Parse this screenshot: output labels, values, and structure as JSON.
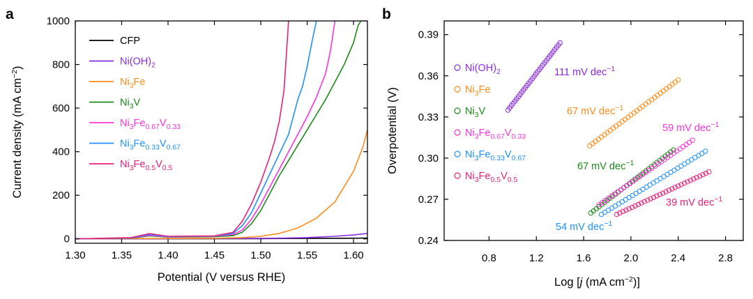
{
  "chart_data": [
    {
      "panel": "a",
      "type": "line",
      "xlabel": "Potential (V versus RHE)",
      "ylabel": "Current density (mA cm−2)",
      "xlim": [
        1.3,
        1.615
      ],
      "ylim": [
        -20,
        1000
      ],
      "xticks": [
        1.3,
        1.35,
        1.4,
        1.45,
        1.5,
        1.55,
        1.6
      ],
      "xtick_labels": [
        "1.30",
        "1.35",
        "1.40",
        "1.45",
        "1.50",
        "1.55",
        "1.60"
      ],
      "yticks": [
        0,
        200,
        400,
        600,
        800,
        1000
      ],
      "ytick_labels": [
        "0",
        "200",
        "400",
        "600",
        "800",
        "1000"
      ],
      "legend_position": "top-left",
      "series": [
        {
          "name": "CFP",
          "base": "CFP",
          "sub": "",
          "base2": "",
          "sub2": "",
          "base3": "",
          "sub3": "",
          "color": "#000000",
          "points": [
            [
              1.3,
              0
            ],
            [
              1.4,
              0.5
            ],
            [
              1.5,
              1
            ],
            [
              1.55,
              2
            ],
            [
              1.6,
              3
            ],
            [
              1.615,
              4
            ]
          ]
        },
        {
          "name": "Ni(OH)2",
          "base": "Ni(OH)",
          "sub": "2",
          "base2": "",
          "sub2": "",
          "base3": "",
          "sub3": "",
          "color": "#8a2be2",
          "points": [
            [
              1.3,
              0
            ],
            [
              1.4,
              1
            ],
            [
              1.48,
              2
            ],
            [
              1.52,
              3
            ],
            [
              1.55,
              6
            ],
            [
              1.58,
              12
            ],
            [
              1.6,
              18
            ],
            [
              1.615,
              25
            ]
          ]
        },
        {
          "name": "Ni3Fe",
          "base": "Ni",
          "sub": "3",
          "base2": "Fe",
          "sub2": "",
          "base3": "",
          "sub3": "",
          "color": "#ff8c1a",
          "points": [
            [
              1.3,
              0
            ],
            [
              1.4,
              2
            ],
            [
              1.45,
              3
            ],
            [
              1.48,
              6
            ],
            [
              1.5,
              12
            ],
            [
              1.52,
              25
            ],
            [
              1.54,
              50
            ],
            [
              1.56,
              95
            ],
            [
              1.58,
              170
            ],
            [
              1.6,
              310
            ],
            [
              1.61,
              420
            ],
            [
              1.615,
              500
            ]
          ]
        },
        {
          "name": "Ni3V",
          "base": "Ni",
          "sub": "3",
          "base2": "V",
          "sub2": "",
          "base3": "",
          "sub3": "",
          "color": "#1a8a1a",
          "points": [
            [
              1.3,
              0
            ],
            [
              1.36,
              3
            ],
            [
              1.38,
              14
            ],
            [
              1.4,
              8
            ],
            [
              1.45,
              10
            ],
            [
              1.47,
              15
            ],
            [
              1.48,
              30
            ],
            [
              1.49,
              70
            ],
            [
              1.5,
              130
            ],
            [
              1.51,
              210
            ],
            [
              1.52,
              290
            ],
            [
              1.53,
              360
            ],
            [
              1.54,
              430
            ],
            [
              1.55,
              500
            ],
            [
              1.56,
              570
            ],
            [
              1.57,
              640
            ],
            [
              1.58,
              720
            ],
            [
              1.59,
              800
            ],
            [
              1.6,
              900
            ],
            [
              1.605,
              980
            ],
            [
              1.608,
              1000
            ]
          ]
        },
        {
          "name": "Ni3Fe0.67V0.33",
          "base": "Ni",
          "sub": "3",
          "base2": "Fe",
          "sub2": "0.67",
          "base3": "V",
          "sub3": "0.33",
          "color": "#ff33dd",
          "points": [
            [
              1.3,
              0
            ],
            [
              1.36,
              4
            ],
            [
              1.38,
              16
            ],
            [
              1.4,
              9
            ],
            [
              1.45,
              12
            ],
            [
              1.47,
              20
            ],
            [
              1.48,
              40
            ],
            [
              1.49,
              90
            ],
            [
              1.5,
              160
            ],
            [
              1.51,
              240
            ],
            [
              1.52,
              320
            ],
            [
              1.53,
              400
            ],
            [
              1.54,
              480
            ],
            [
              1.55,
              560
            ],
            [
              1.56,
              650
            ],
            [
              1.57,
              760
            ],
            [
              1.575,
              860
            ],
            [
              1.58,
              1000
            ]
          ]
        },
        {
          "name": "Ni3Fe0.33V0.67",
          "base": "Ni",
          "sub": "3",
          "base2": "Fe",
          "sub2": "0.33",
          "base3": "V",
          "sub3": "0.67",
          "color": "#1e90ff",
          "points": [
            [
              1.3,
              0
            ],
            [
              1.36,
              5
            ],
            [
              1.38,
              20
            ],
            [
              1.4,
              10
            ],
            [
              1.45,
              13
            ],
            [
              1.47,
              25
            ],
            [
              1.48,
              60
            ],
            [
              1.49,
              120
            ],
            [
              1.5,
              210
            ],
            [
              1.51,
              300
            ],
            [
              1.52,
              390
            ],
            [
              1.53,
              480
            ],
            [
              1.535,
              560
            ],
            [
              1.54,
              640
            ],
            [
              1.545,
              700
            ],
            [
              1.55,
              790
            ],
            [
              1.555,
              900
            ],
            [
              1.56,
              1000
            ]
          ]
        },
        {
          "name": "Ni3Fe0.5V0.5",
          "base": "Ni",
          "sub": "3",
          "base2": "Fe",
          "sub2": "0.5",
          "base3": "V",
          "sub3": "0.5",
          "color": "#e8207a",
          "points": [
            [
              1.3,
              0
            ],
            [
              1.36,
              6
            ],
            [
              1.38,
              24
            ],
            [
              1.4,
              12
            ],
            [
              1.45,
              14
            ],
            [
              1.47,
              30
            ],
            [
              1.48,
              80
            ],
            [
              1.49,
              160
            ],
            [
              1.5,
              260
            ],
            [
              1.51,
              380
            ],
            [
              1.515,
              450
            ],
            [
              1.52,
              540
            ],
            [
              1.525,
              680
            ],
            [
              1.53,
              1000
            ]
          ]
        }
      ]
    },
    {
      "panel": "b",
      "type": "scatter",
      "xlabel_pre": "Log [",
      "xlabel_italic": "j",
      "xlabel_post": " (mA cm−2)]",
      "ylabel": "Overpotential (V)",
      "xlim": [
        0.42,
        2.95
      ],
      "ylim": [
        0.24,
        0.4
      ],
      "xticks": [
        0.8,
        1.2,
        1.6,
        2.0,
        2.4,
        2.8
      ],
      "xtick_labels": [
        "0.8",
        "1.2",
        "1.6",
        "2.0",
        "2.4",
        "2.8"
      ],
      "yticks": [
        0.24,
        0.27,
        0.3,
        0.33,
        0.36,
        0.39
      ],
      "ytick_labels": [
        "0.24",
        "0.27",
        "0.30",
        "0.33",
        "0.36",
        "0.39"
      ],
      "legend_position": "left",
      "marker": "open-circle",
      "series": [
        {
          "name": "Ni(OH)2",
          "base": "Ni(OH)",
          "sub": "2",
          "base2": "",
          "sub2": "",
          "base3": "",
          "sub3": "",
          "color": "#8a2be2",
          "x_range": [
            0.96,
            1.4
          ],
          "y_range": [
            0.335,
            0.384
          ],
          "slope_label": "111 mV dec−1"
        },
        {
          "name": "Ni3Fe",
          "base": "Ni",
          "sub": "3",
          "base2": "Fe",
          "sub2": "",
          "base3": "",
          "sub3": "",
          "color": "#ff8c1a",
          "x_range": [
            1.65,
            2.4
          ],
          "y_range": [
            0.309,
            0.357
          ],
          "slope_label": "67 mV dec−1"
        },
        {
          "name": "Ni3V",
          "base": "Ni",
          "sub": "3",
          "base2": "V",
          "sub2": "",
          "base3": "",
          "sub3": "",
          "color": "#1a8a1a",
          "x_range": [
            1.66,
            2.36
          ],
          "y_range": [
            0.26,
            0.306
          ],
          "slope_label": "67 mV dec−1"
        },
        {
          "name": "Ni3Fe0.67V0.33",
          "base": "Ni",
          "sub": "3",
          "base2": "Fe",
          "sub2": "0.67",
          "base3": "V",
          "sub3": "0.33",
          "color": "#ff33dd",
          "x_range": [
            1.73,
            2.52
          ],
          "y_range": [
            0.266,
            0.313
          ],
          "slope_label": "59 mV dec−1"
        },
        {
          "name": "Ni3Fe0.33V0.67",
          "base": "Ni",
          "sub": "3",
          "base2": "Fe",
          "sub2": "0.33",
          "base3": "V",
          "sub3": "0.67",
          "color": "#1e90ff",
          "x_range": [
            1.75,
            2.63
          ],
          "y_range": [
            0.259,
            0.305
          ],
          "slope_label": "54 mV dec−1"
        },
        {
          "name": "Ni3Fe0.5V0.5",
          "base": "Ni",
          "sub": "3",
          "base2": "Fe",
          "sub2": "0.5",
          "base3": "V",
          "sub3": "0.5",
          "color": "#e8207a",
          "x_range": [
            1.88,
            2.66
          ],
          "y_range": [
            0.259,
            0.29
          ],
          "slope_label": "39 mV dec−1"
        }
      ]
    }
  ],
  "panels": {
    "a": {
      "letter": "a"
    },
    "b": {
      "letter": "b"
    }
  }
}
